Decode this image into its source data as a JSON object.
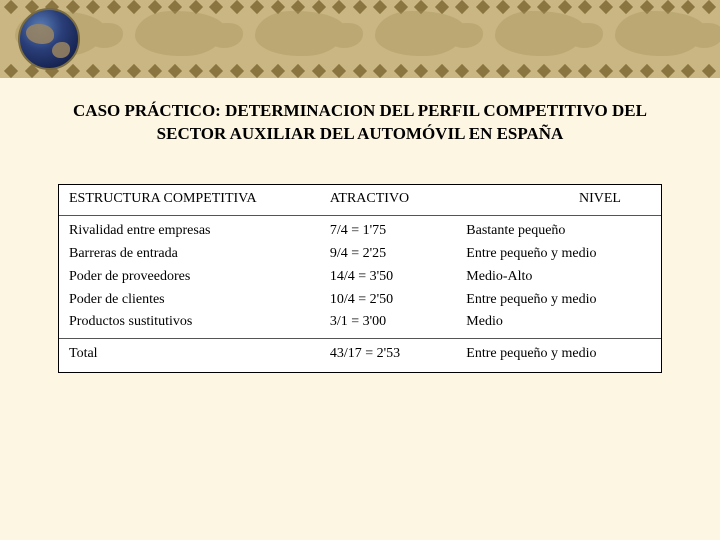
{
  "banner": {
    "background_color": "#c9b682",
    "diamond_color": "#8a7440",
    "map_color": "#a38f58",
    "globe_colors": [
      "#5a7fb8",
      "#2a3e78",
      "#0a1238"
    ]
  },
  "title": {
    "line1": "CASO PRÁCTICO: DETERMINACION DEL PERFIL COMPETITIVO DEL",
    "line2": "SECTOR AUXILIAR DEL AUTOMÓVIL EN ESPAÑA",
    "font_size": 17,
    "color": "#000000"
  },
  "table": {
    "type": "table",
    "background_color": "#ffffff",
    "border_color": "#000000",
    "row_border_color": "#555555",
    "font_size": 14,
    "columns": [
      {
        "label": "ESTRUCTURA COMPETITIVA",
        "width_pct": 42,
        "align": "left"
      },
      {
        "label": "ATRACTIVO",
        "width_pct": 24,
        "align": "left"
      },
      {
        "label": "NIVEL",
        "width_pct": 34,
        "align": "right"
      }
    ],
    "rows": [
      {
        "structure": "Rivalidad entre empresas",
        "attract": "7/4 = 1'75",
        "level": "Bastante pequeño"
      },
      {
        "structure": "Barreras de entrada",
        "attract": "9/4 = 2'25",
        "level": "Entre pequeño y medio"
      },
      {
        "structure": "Poder de proveedores",
        "attract": "14/4 = 3'50",
        "level": "Medio-Alto"
      },
      {
        "structure": "Poder de clientes",
        "attract": "10/4 = 2'50",
        "level": "Entre pequeño y medio"
      },
      {
        "structure": "Productos sustitutivos",
        "attract": "3/1 = 3'00",
        "level": "Medio"
      }
    ],
    "footer": {
      "structure": "Total",
      "attract": "43/17 = 2'53",
      "level": "Entre pequeño y medio"
    }
  }
}
